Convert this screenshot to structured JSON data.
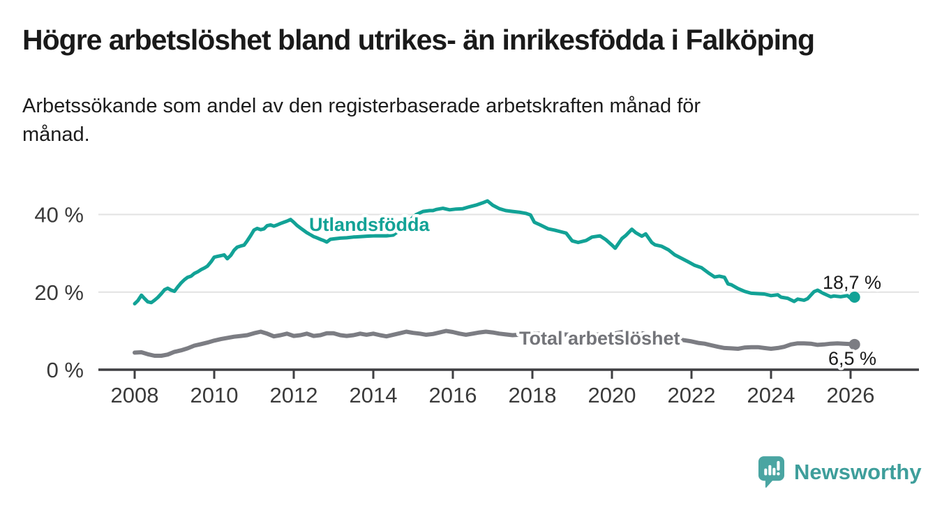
{
  "header": {
    "title": "Högre arbetslöshet bland utrikes- än inrikesfödda i Falköping",
    "subtitle_line1": "Arbetssökande som andel av den registerbaserade arbetskraften månad för",
    "subtitle_line2": "månad."
  },
  "footer": {
    "brand": "Newsworthy",
    "brand_color": "#3e9e9b",
    "logo_color": "#4aa5a2"
  },
  "chart_data": {
    "type": "line",
    "title": "Högre arbetslöshet bland utrikes- än inrikesfödda i Falköping",
    "subtitle": "Arbetssökande som andel av den registerbaserade arbetskraften månad för månad.",
    "xlabel": "",
    "ylabel": "",
    "ylim": [
      0,
      46
    ],
    "xlim": [
      2007.1,
      2027.2
    ],
    "grid": "horizontal-only",
    "legend_position": "inline-labels",
    "y_ticks": [
      0,
      20,
      40
    ],
    "y_tick_labels": [
      "0 %",
      "20 %",
      "40 %"
    ],
    "x_ticks": [
      2008,
      2010,
      2012,
      2014,
      2016,
      2018,
      2020,
      2022,
      2024,
      2026
    ],
    "x_tick_labels": [
      "2008",
      "2010",
      "2012",
      "2014",
      "2016",
      "2018",
      "2020",
      "2022",
      "2024",
      "2026"
    ],
    "series": [
      {
        "name": "Utlandsfödda",
        "color": "#12a296",
        "end_label": "18,7 %",
        "end_value": 18.7,
        "points": [
          [
            2008.0,
            17.0
          ],
          [
            2008.08,
            17.8
          ],
          [
            2008.17,
            19.2
          ],
          [
            2008.25,
            18.3
          ],
          [
            2008.33,
            17.5
          ],
          [
            2008.42,
            17.3
          ],
          [
            2008.5,
            17.9
          ],
          [
            2008.58,
            18.6
          ],
          [
            2008.67,
            19.6
          ],
          [
            2008.75,
            20.6
          ],
          [
            2008.83,
            21.0
          ],
          [
            2008.92,
            20.5
          ],
          [
            2009.0,
            20.2
          ],
          [
            2009.08,
            21.3
          ],
          [
            2009.17,
            22.4
          ],
          [
            2009.25,
            23.2
          ],
          [
            2009.33,
            23.8
          ],
          [
            2009.42,
            24.1
          ],
          [
            2009.5,
            24.8
          ],
          [
            2009.58,
            25.2
          ],
          [
            2009.67,
            25.8
          ],
          [
            2009.75,
            26.2
          ],
          [
            2009.83,
            26.7
          ],
          [
            2009.92,
            27.8
          ],
          [
            2010.0,
            29.0
          ],
          [
            2010.08,
            29.2
          ],
          [
            2010.17,
            29.4
          ],
          [
            2010.25,
            29.6
          ],
          [
            2010.33,
            28.6
          ],
          [
            2010.42,
            29.5
          ],
          [
            2010.5,
            30.8
          ],
          [
            2010.58,
            31.6
          ],
          [
            2010.67,
            31.9
          ],
          [
            2010.75,
            32.1
          ],
          [
            2010.83,
            33.2
          ],
          [
            2010.92,
            34.6
          ],
          [
            2011.0,
            36.0
          ],
          [
            2011.08,
            36.4
          ],
          [
            2011.17,
            36.1
          ],
          [
            2011.25,
            36.3
          ],
          [
            2011.33,
            37.1
          ],
          [
            2011.42,
            37.3
          ],
          [
            2011.5,
            37.0
          ],
          [
            2011.58,
            37.3
          ],
          [
            2011.67,
            37.7
          ],
          [
            2011.75,
            38.0
          ],
          [
            2011.83,
            38.3
          ],
          [
            2011.92,
            38.7
          ],
          [
            2012.0,
            38.0
          ],
          [
            2012.08,
            37.2
          ],
          [
            2012.17,
            36.5
          ],
          [
            2012.25,
            35.9
          ],
          [
            2012.33,
            35.3
          ],
          [
            2012.42,
            34.8
          ],
          [
            2012.5,
            34.3
          ],
          [
            2012.58,
            34.0
          ],
          [
            2012.67,
            33.6
          ],
          [
            2012.75,
            33.3
          ],
          [
            2012.83,
            32.9
          ],
          [
            2012.92,
            33.6
          ],
          [
            2013.0,
            33.7
          ],
          [
            2013.17,
            33.9
          ],
          [
            2013.33,
            34.0
          ],
          [
            2013.5,
            34.2
          ],
          [
            2013.67,
            34.3
          ],
          [
            2013.83,
            34.4
          ],
          [
            2014.0,
            34.5
          ],
          [
            2014.17,
            34.5
          ],
          [
            2014.33,
            34.5
          ],
          [
            2014.5,
            34.7
          ],
          [
            2014.67,
            36.0
          ],
          [
            2014.83,
            37.5
          ],
          [
            2015.0,
            39.3
          ],
          [
            2015.08,
            40.0
          ],
          [
            2015.25,
            40.8
          ],
          [
            2015.42,
            41.0
          ],
          [
            2015.5,
            41.0
          ],
          [
            2015.58,
            41.3
          ],
          [
            2015.75,
            41.6
          ],
          [
            2015.92,
            41.2
          ],
          [
            2016.08,
            41.4
          ],
          [
            2016.25,
            41.5
          ],
          [
            2016.42,
            42.0
          ],
          [
            2016.58,
            42.4
          ],
          [
            2016.75,
            43.0
          ],
          [
            2016.87,
            43.5
          ],
          [
            2017.0,
            42.4
          ],
          [
            2017.17,
            41.5
          ],
          [
            2017.33,
            41.0
          ],
          [
            2017.5,
            40.8
          ],
          [
            2017.67,
            40.6
          ],
          [
            2017.83,
            40.3
          ],
          [
            2017.95,
            39.9
          ],
          [
            2018.05,
            38.0
          ],
          [
            2018.2,
            37.3
          ],
          [
            2018.4,
            36.3
          ],
          [
            2018.55,
            36.0
          ],
          [
            2018.7,
            35.6
          ],
          [
            2018.85,
            35.2
          ],
          [
            2019.0,
            33.2
          ],
          [
            2019.15,
            32.8
          ],
          [
            2019.35,
            33.3
          ],
          [
            2019.5,
            34.2
          ],
          [
            2019.7,
            34.5
          ],
          [
            2019.85,
            33.5
          ],
          [
            2020.0,
            32.1
          ],
          [
            2020.08,
            31.3
          ],
          [
            2020.25,
            33.8
          ],
          [
            2020.35,
            34.6
          ],
          [
            2020.5,
            36.2
          ],
          [
            2020.6,
            35.3
          ],
          [
            2020.75,
            34.4
          ],
          [
            2020.85,
            35.0
          ],
          [
            2021.0,
            32.8
          ],
          [
            2021.08,
            32.2
          ],
          [
            2021.25,
            31.8
          ],
          [
            2021.42,
            30.9
          ],
          [
            2021.58,
            29.6
          ],
          [
            2021.75,
            28.7
          ],
          [
            2021.92,
            27.8
          ],
          [
            2022.08,
            26.9
          ],
          [
            2022.25,
            26.3
          ],
          [
            2022.42,
            25.0
          ],
          [
            2022.58,
            23.9
          ],
          [
            2022.7,
            24.1
          ],
          [
            2022.83,
            23.8
          ],
          [
            2022.92,
            22.1
          ],
          [
            2023.0,
            21.9
          ],
          [
            2023.17,
            20.9
          ],
          [
            2023.33,
            20.2
          ],
          [
            2023.5,
            19.7
          ],
          [
            2023.67,
            19.6
          ],
          [
            2023.83,
            19.5
          ],
          [
            2024.0,
            19.1
          ],
          [
            2024.17,
            19.3
          ],
          [
            2024.25,
            18.7
          ],
          [
            2024.42,
            18.4
          ],
          [
            2024.58,
            17.6
          ],
          [
            2024.67,
            18.2
          ],
          [
            2024.83,
            17.9
          ],
          [
            2024.92,
            18.3
          ],
          [
            2025.08,
            20.1
          ],
          [
            2025.17,
            20.5
          ],
          [
            2025.33,
            19.6
          ],
          [
            2025.5,
            18.8
          ],
          [
            2025.58,
            19.0
          ],
          [
            2025.75,
            18.8
          ],
          [
            2025.92,
            19.1
          ],
          [
            2026.0,
            18.4
          ],
          [
            2026.1,
            18.7
          ]
        ]
      },
      {
        "name": "Total arbetslöshet",
        "color": "#7c7d83",
        "end_label": "6,5 %",
        "end_value": 6.5,
        "points": [
          [
            2008.0,
            4.4
          ],
          [
            2008.17,
            4.5
          ],
          [
            2008.33,
            4.0
          ],
          [
            2008.5,
            3.6
          ],
          [
            2008.67,
            3.6
          ],
          [
            2008.83,
            3.9
          ],
          [
            2009.0,
            4.6
          ],
          [
            2009.17,
            5.0
          ],
          [
            2009.33,
            5.5
          ],
          [
            2009.5,
            6.2
          ],
          [
            2009.67,
            6.6
          ],
          [
            2009.83,
            7.0
          ],
          [
            2010.0,
            7.5
          ],
          [
            2010.17,
            7.9
          ],
          [
            2010.33,
            8.2
          ],
          [
            2010.5,
            8.5
          ],
          [
            2010.67,
            8.7
          ],
          [
            2010.83,
            8.9
          ],
          [
            2011.0,
            9.4
          ],
          [
            2011.17,
            9.8
          ],
          [
            2011.33,
            9.3
          ],
          [
            2011.5,
            8.6
          ],
          [
            2011.67,
            8.9
          ],
          [
            2011.83,
            9.3
          ],
          [
            2012.0,
            8.7
          ],
          [
            2012.17,
            8.9
          ],
          [
            2012.33,
            9.3
          ],
          [
            2012.5,
            8.7
          ],
          [
            2012.67,
            8.9
          ],
          [
            2012.83,
            9.4
          ],
          [
            2013.0,
            9.4
          ],
          [
            2013.17,
            8.9
          ],
          [
            2013.33,
            8.7
          ],
          [
            2013.5,
            8.9
          ],
          [
            2013.67,
            9.3
          ],
          [
            2013.83,
            9.0
          ],
          [
            2014.0,
            9.3
          ],
          [
            2014.17,
            8.9
          ],
          [
            2014.33,
            8.6
          ],
          [
            2014.5,
            9.0
          ],
          [
            2014.67,
            9.4
          ],
          [
            2014.83,
            9.8
          ],
          [
            2015.0,
            9.5
          ],
          [
            2015.17,
            9.3
          ],
          [
            2015.33,
            9.0
          ],
          [
            2015.5,
            9.2
          ],
          [
            2015.67,
            9.6
          ],
          [
            2015.83,
            10.0
          ],
          [
            2016.0,
            9.7
          ],
          [
            2016.17,
            9.3
          ],
          [
            2016.33,
            9.0
          ],
          [
            2016.5,
            9.3
          ],
          [
            2016.67,
            9.6
          ],
          [
            2016.83,
            9.8
          ],
          [
            2017.0,
            9.6
          ],
          [
            2017.17,
            9.3
          ],
          [
            2017.33,
            9.1
          ],
          [
            2017.5,
            8.9
          ],
          [
            2017.67,
            9.0
          ],
          [
            2017.83,
            9.2
          ],
          [
            2018.0,
            9.4
          ],
          [
            2018.25,
            9.2
          ],
          [
            2018.5,
            9.0
          ],
          [
            2018.75,
            9.1
          ],
          [
            2019.0,
            9.0
          ],
          [
            2019.25,
            8.9
          ],
          [
            2019.5,
            9.0
          ],
          [
            2019.75,
            9.1
          ],
          [
            2020.0,
            9.2
          ],
          [
            2020.25,
            9.7
          ],
          [
            2020.42,
            9.9
          ],
          [
            2020.58,
            9.7
          ],
          [
            2020.75,
            9.4
          ],
          [
            2021.0,
            9.0
          ],
          [
            2021.25,
            8.6
          ],
          [
            2021.5,
            8.1
          ],
          [
            2021.75,
            7.7
          ],
          [
            2022.0,
            7.3
          ],
          [
            2022.17,
            6.9
          ],
          [
            2022.33,
            6.7
          ],
          [
            2022.5,
            6.3
          ],
          [
            2022.67,
            5.9
          ],
          [
            2022.83,
            5.6
          ],
          [
            2023.0,
            5.5
          ],
          [
            2023.17,
            5.4
          ],
          [
            2023.33,
            5.7
          ],
          [
            2023.5,
            5.8
          ],
          [
            2023.67,
            5.8
          ],
          [
            2023.83,
            5.6
          ],
          [
            2024.0,
            5.4
          ],
          [
            2024.17,
            5.6
          ],
          [
            2024.33,
            5.9
          ],
          [
            2024.5,
            6.5
          ],
          [
            2024.67,
            6.8
          ],
          [
            2024.83,
            6.8
          ],
          [
            2025.0,
            6.7
          ],
          [
            2025.17,
            6.4
          ],
          [
            2025.33,
            6.5
          ],
          [
            2025.5,
            6.7
          ],
          [
            2025.67,
            6.8
          ],
          [
            2025.83,
            6.7
          ],
          [
            2026.0,
            6.6
          ],
          [
            2026.1,
            6.5
          ]
        ]
      }
    ]
  }
}
